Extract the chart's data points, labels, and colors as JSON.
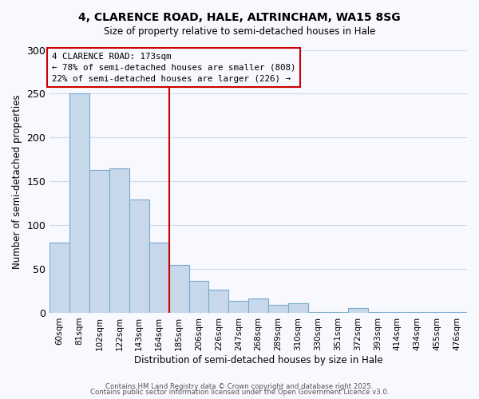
{
  "title": "4, CLARENCE ROAD, HALE, ALTRINCHAM, WA15 8SG",
  "subtitle": "Size of property relative to semi-detached houses in Hale",
  "xlabel": "Distribution of semi-detached houses by size in Hale",
  "ylabel": "Number of semi-detached properties",
  "bar_color": "#c8d8eb",
  "bar_edge_color": "#7aaacc",
  "categories": [
    "60sqm",
    "81sqm",
    "102sqm",
    "122sqm",
    "143sqm",
    "164sqm",
    "185sqm",
    "206sqm",
    "226sqm",
    "247sqm",
    "268sqm",
    "289sqm",
    "310sqm",
    "330sqm",
    "351sqm",
    "372sqm",
    "393sqm",
    "414sqm",
    "434sqm",
    "455sqm",
    "476sqm"
  ],
  "values": [
    80,
    250,
    163,
    165,
    129,
    80,
    55,
    36,
    26,
    14,
    16,
    9,
    11,
    1,
    1,
    5,
    1,
    1,
    1,
    1,
    1
  ],
  "ylim": [
    0,
    300
  ],
  "yticks": [
    0,
    50,
    100,
    150,
    200,
    250,
    300
  ],
  "vline_pos": 5.5,
  "marker_label": "4 CLARENCE ROAD: 173sqm",
  "pct_smaller": 78,
  "n_smaller": 808,
  "pct_larger": 22,
  "n_larger": 226,
  "vline_color": "#cc0000",
  "annotation_box_edge_color": "#cc0000",
  "footer_line1": "Contains HM Land Registry data © Crown copyright and database right 2025.",
  "footer_line2": "Contains public sector information licensed under the Open Government Licence v3.0.",
  "bg_color": "#f8f8ff",
  "grid_color": "#d0d8e8"
}
